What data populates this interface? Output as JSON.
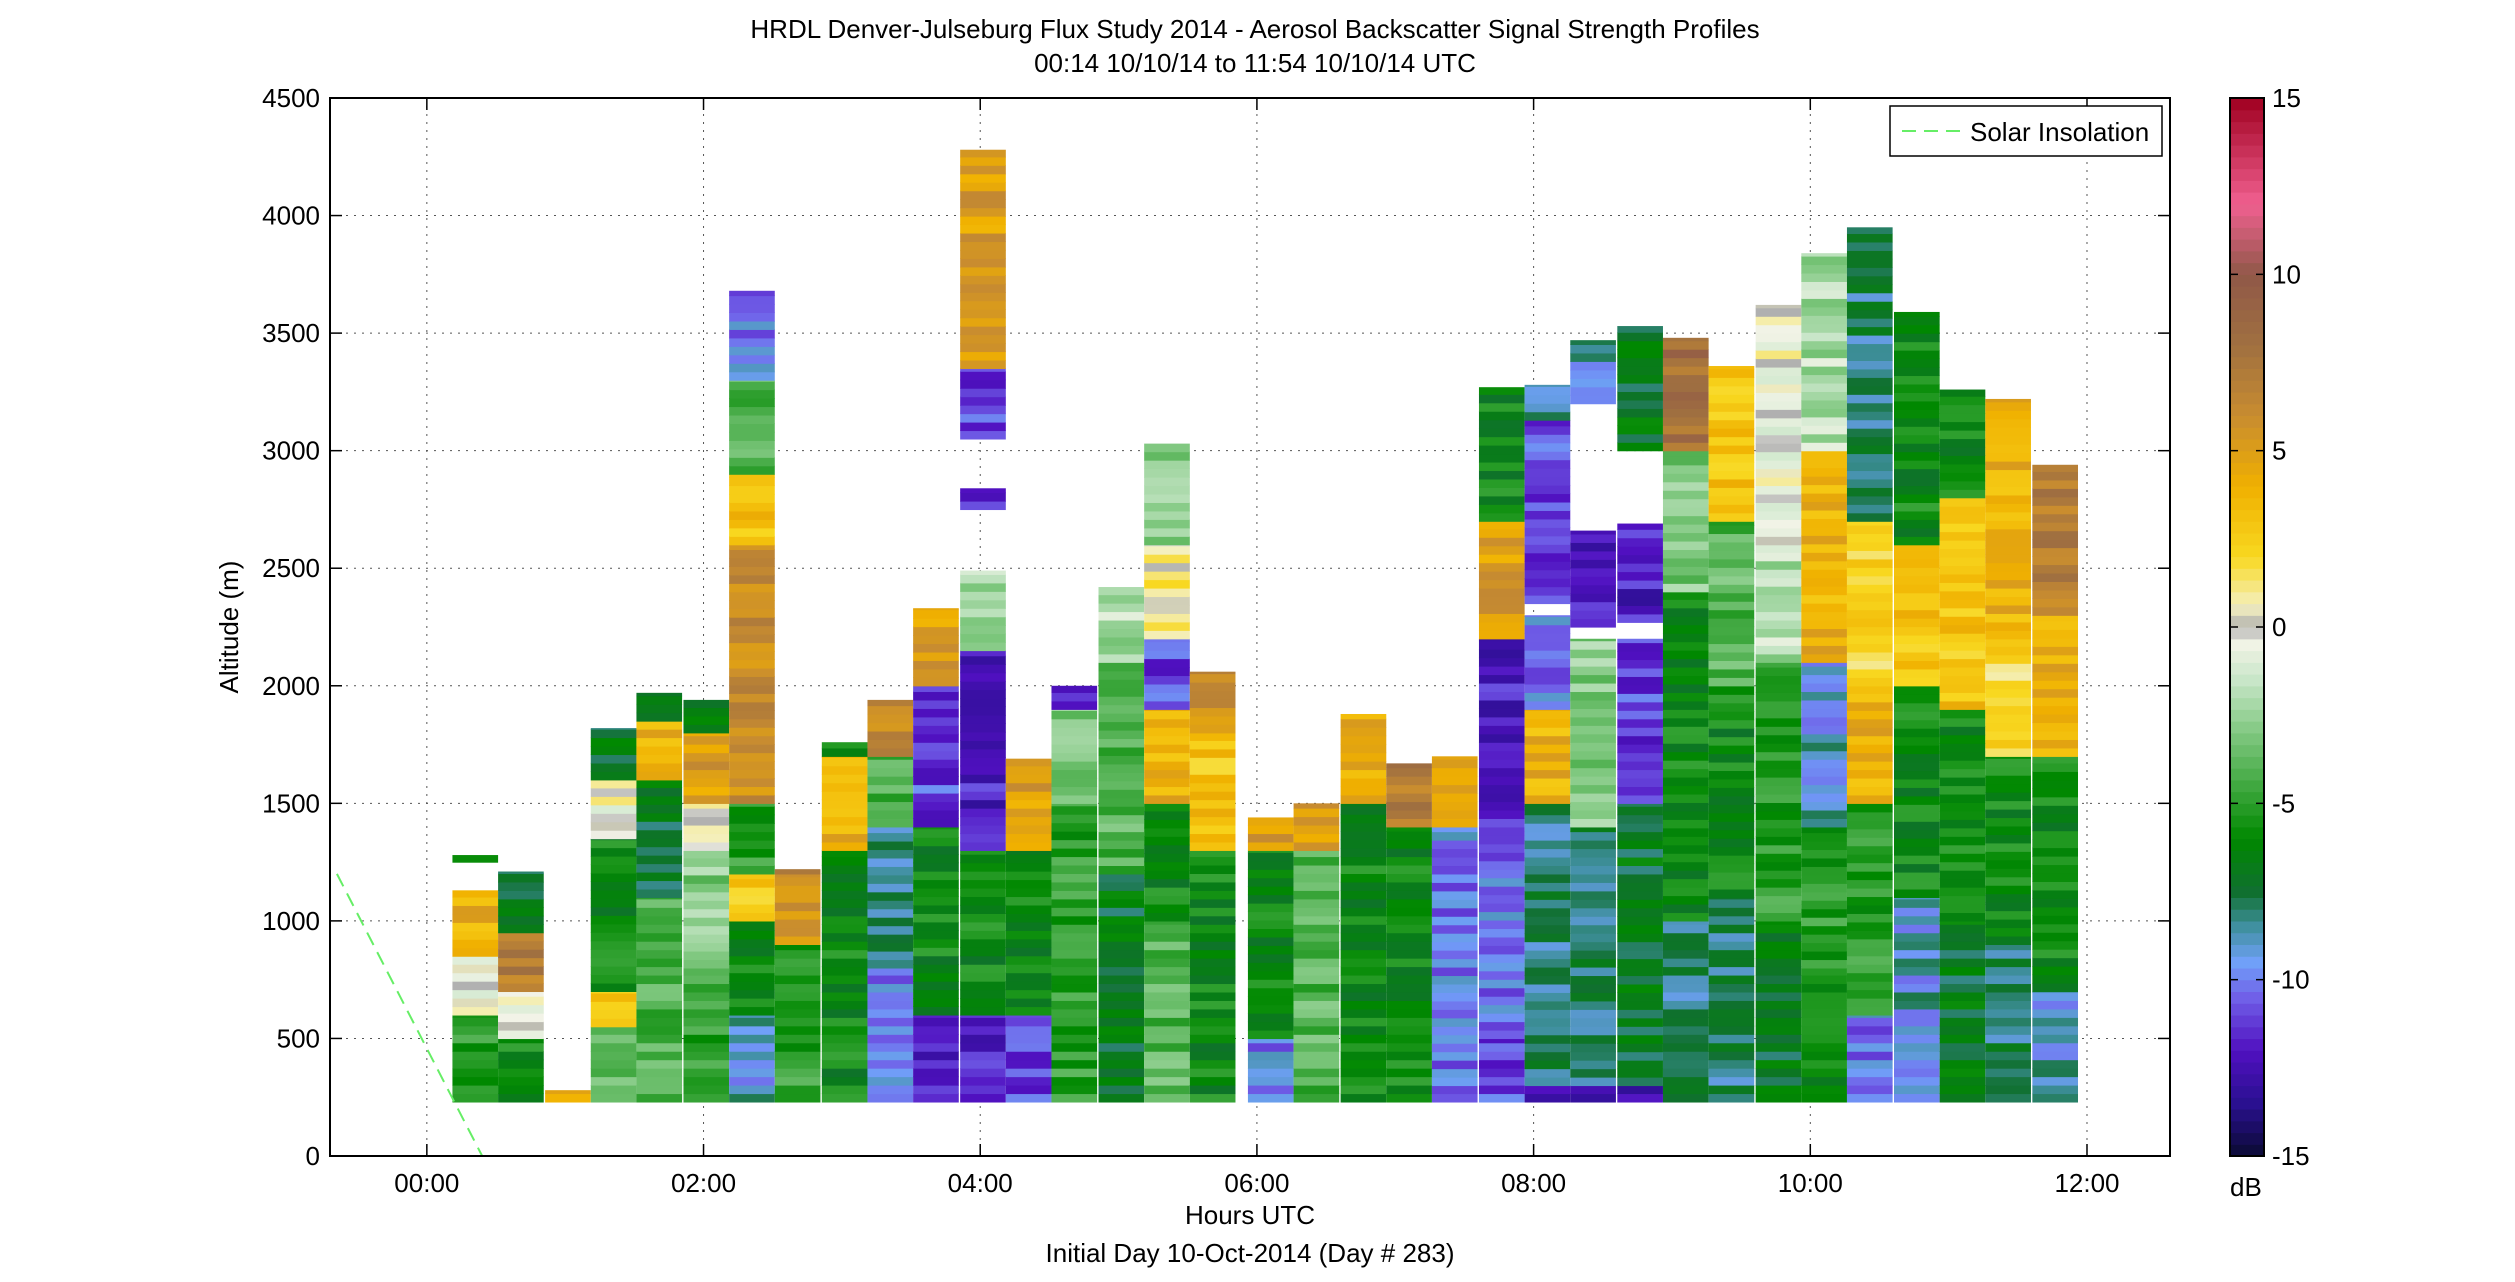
{
  "chart_data": {
    "type": "heatmap",
    "title": "HRDL Denver-Julseburg Flux Study 2014 - Aerosol Backscatter Signal Strength Profiles",
    "subtitle": "00:14 10/10/14 to 11:54 10/10/14  UTC",
    "xlabel": "Hours UTC",
    "xlabel2": "Initial Day 10-Oct-2014 (Day # 283)",
    "ylabel": "Altitude (m)",
    "xlim": [
      -0.7,
      12.6
    ],
    "ylim": [
      0,
      4500
    ],
    "x_ticks": [
      0,
      2,
      4,
      6,
      8,
      10,
      12
    ],
    "x_tick_labels": [
      "00:00",
      "02:00",
      "04:00",
      "06:00",
      "08:00",
      "10:00",
      "12:00"
    ],
    "y_ticks": [
      0,
      500,
      1000,
      1500,
      2000,
      2500,
      3000,
      3500,
      4000,
      4500
    ],
    "y_tick_labels": [
      "0",
      "500",
      "1000",
      "1500",
      "2000",
      "2500",
      "3000",
      "3500",
      "4000",
      "4500"
    ],
    "grid": true,
    "legend": {
      "position": "top-right",
      "entries": [
        "Solar Insolation"
      ]
    },
    "colorbar": {
      "label": "dB",
      "range": [
        -15,
        15
      ],
      "ticks": [
        -15,
        -10,
        -5,
        0,
        5,
        10,
        15
      ],
      "tick_labels": [
        "-15",
        "-10",
        "-5",
        "0",
        "5",
        "10",
        "15"
      ]
    },
    "solar_insolation_line": {
      "x": [
        -0.65,
        0.4
      ],
      "y": [
        1200,
        0
      ],
      "color": "#66ee66"
    },
    "profile_time_width_hours": 0.33,
    "profiles": [
      {
        "t": 0.35,
        "segments": [
          [
            230,
            600,
            -5
          ],
          [
            600,
            850,
            0
          ],
          [
            850,
            1130,
            4
          ],
          [
            1250,
            1280,
            -7
          ]
        ]
      },
      {
        "t": 0.68,
        "segments": [
          [
            230,
            500,
            -6
          ],
          [
            500,
            700,
            0
          ],
          [
            700,
            950,
            7
          ],
          [
            950,
            1210,
            -7
          ]
        ]
      },
      {
        "t": 1.02,
        "segments": [
          [
            230,
            280,
            5
          ]
        ]
      },
      {
        "t": 1.35,
        "segments": [
          [
            230,
            550,
            -4
          ],
          [
            550,
            700,
            3
          ],
          [
            700,
            1350,
            -6
          ],
          [
            1350,
            1600,
            0
          ],
          [
            1600,
            1820,
            -7
          ]
        ]
      },
      {
        "t": 1.68,
        "segments": [
          [
            230,
            1100,
            -4
          ],
          [
            1100,
            1600,
            -7
          ],
          [
            1600,
            1850,
            4
          ],
          [
            1850,
            1970,
            -6
          ]
        ]
      },
      {
        "t": 2.02,
        "segments": [
          [
            230,
            800,
            -5
          ],
          [
            800,
            1300,
            -3
          ],
          [
            1300,
            1500,
            0
          ],
          [
            1500,
            1800,
            5
          ],
          [
            1800,
            1940,
            -6
          ]
        ]
      },
      {
        "t": 2.35,
        "segments": [
          [
            230,
            600,
            -9
          ],
          [
            600,
            1000,
            -6
          ],
          [
            1000,
            1200,
            3
          ],
          [
            1200,
            1500,
            -5
          ],
          [
            1500,
            2600,
            6
          ],
          [
            2600,
            2900,
            3
          ],
          [
            2900,
            3300,
            -4
          ],
          [
            3300,
            3680,
            -10
          ]
        ]
      },
      {
        "t": 2.68,
        "segments": [
          [
            230,
            900,
            -5
          ],
          [
            900,
            1200,
            6
          ],
          [
            1200,
            1220,
            7
          ]
        ]
      },
      {
        "t": 3.02,
        "segments": [
          [
            230,
            1300,
            -6
          ],
          [
            1300,
            1700,
            4
          ],
          [
            1700,
            1760,
            -6
          ]
        ]
      },
      {
        "t": 3.35,
        "segments": [
          [
            230,
            800,
            -10
          ],
          [
            800,
            1400,
            -8
          ],
          [
            1400,
            1700,
            -4
          ],
          [
            1700,
            1940,
            6
          ]
        ]
      },
      {
        "t": 3.68,
        "segments": [
          [
            230,
            600,
            -12
          ],
          [
            600,
            1400,
            -6
          ],
          [
            1400,
            2000,
            -11
          ],
          [
            2000,
            2330,
            5
          ]
        ]
      },
      {
        "t": 4.02,
        "segments": [
          [
            230,
            600,
            -12
          ],
          [
            600,
            1300,
            -6
          ],
          [
            1300,
            2150,
            -12
          ],
          [
            2150,
            2490,
            -2
          ],
          [
            2750,
            2840,
            -12
          ],
          [
            3050,
            3350,
            -11
          ],
          [
            3350,
            4280,
            5
          ]
        ]
      },
      {
        "t": 4.35,
        "segments": [
          [
            230,
            600,
            -11
          ],
          [
            600,
            1300,
            -6
          ],
          [
            1300,
            1690,
            5
          ]
        ]
      },
      {
        "t": 4.68,
        "segments": [
          [
            230,
            1500,
            -5
          ],
          [
            1500,
            1900,
            -3
          ],
          [
            1900,
            2000,
            -12
          ]
        ]
      },
      {
        "t": 5.02,
        "segments": [
          [
            230,
            1200,
            -7
          ],
          [
            1200,
            2100,
            -4
          ],
          [
            2100,
            2420,
            -2
          ]
        ]
      },
      {
        "t": 5.35,
        "segments": [
          [
            230,
            1000,
            -4
          ],
          [
            1000,
            1500,
            -6
          ],
          [
            1500,
            1900,
            4
          ],
          [
            1900,
            2200,
            -11
          ],
          [
            2200,
            2600,
            1
          ],
          [
            2600,
            3030,
            -3
          ]
        ]
      },
      {
        "t": 5.68,
        "segments": [
          [
            230,
            1300,
            -6
          ],
          [
            1300,
            1800,
            3
          ],
          [
            1800,
            2060,
            6
          ]
        ]
      },
      {
        "t": 6.1,
        "segments": [
          [
            230,
            500,
            -10
          ],
          [
            500,
            1300,
            -6
          ],
          [
            1300,
            1440,
            5
          ]
        ]
      },
      {
        "t": 6.43,
        "segments": [
          [
            230,
            1300,
            -4
          ],
          [
            1300,
            1500,
            5
          ]
        ]
      },
      {
        "t": 6.77,
        "segments": [
          [
            230,
            1500,
            -6
          ],
          [
            1500,
            1880,
            4
          ]
        ]
      },
      {
        "t": 7.1,
        "segments": [
          [
            230,
            1400,
            -6
          ],
          [
            1400,
            1670,
            7
          ]
        ]
      },
      {
        "t": 7.43,
        "segments": [
          [
            230,
            300,
            -11
          ],
          [
            300,
            1400,
            -10
          ],
          [
            1400,
            1700,
            4
          ]
        ]
      },
      {
        "t": 7.77,
        "segments": [
          [
            230,
            500,
            -11
          ],
          [
            500,
            1400,
            -10
          ],
          [
            1400,
            2200,
            -12
          ],
          [
            2200,
            2700,
            5
          ],
          [
            2700,
            3270,
            -6
          ]
        ]
      },
      {
        "t": 8.1,
        "segments": [
          [
            230,
            300,
            -12
          ],
          [
            300,
            1500,
            -8
          ],
          [
            1500,
            1900,
            4
          ],
          [
            1900,
            2300,
            -10
          ],
          [
            2350,
            3130,
            -11
          ],
          [
            3130,
            3280,
            -9
          ]
        ]
      },
      {
        "t": 8.43,
        "segments": [
          [
            230,
            300,
            -12
          ],
          [
            300,
            1400,
            -8
          ],
          [
            1400,
            2200,
            -3
          ],
          [
            2250,
            2660,
            -12
          ],
          [
            3200,
            3470,
            -9
          ]
        ]
      },
      {
        "t": 8.77,
        "segments": [
          [
            230,
            300,
            -12
          ],
          [
            300,
            1500,
            -7
          ],
          [
            1500,
            2200,
            -11
          ],
          [
            2270,
            2690,
            -12
          ],
          [
            3000,
            3530,
            -7
          ]
        ]
      },
      {
        "t": 9.1,
        "segments": [
          [
            230,
            1000,
            -8
          ],
          [
            1000,
            2400,
            -6
          ],
          [
            2400,
            3000,
            -3
          ],
          [
            3000,
            3480,
            8
          ]
        ]
      },
      {
        "t": 9.43,
        "segments": [
          [
            230,
            1100,
            -8
          ],
          [
            1100,
            2000,
            -6
          ],
          [
            2000,
            2700,
            -4
          ],
          [
            2700,
            3360,
            3
          ]
        ]
      },
      {
        "t": 9.77,
        "segments": [
          [
            230,
            1000,
            -7
          ],
          [
            1000,
            2100,
            -5
          ],
          [
            2100,
            2600,
            -2
          ],
          [
            2600,
            3620,
            0
          ]
        ]
      },
      {
        "t": 10.1,
        "segments": [
          [
            230,
            800,
            -6
          ],
          [
            800,
            1400,
            -5
          ],
          [
            1400,
            2100,
            -9
          ],
          [
            2100,
            3000,
            4
          ],
          [
            3000,
            3840,
            -2
          ]
        ]
      },
      {
        "t": 10.43,
        "segments": [
          [
            230,
            600,
            -10
          ],
          [
            600,
            1500,
            -5
          ],
          [
            1500,
            2000,
            4
          ],
          [
            2000,
            2700,
            2
          ],
          [
            2700,
            3950,
            -8
          ]
        ]
      },
      {
        "t": 10.77,
        "segments": [
          [
            230,
            1100,
            -9
          ],
          [
            1100,
            2000,
            -6
          ],
          [
            2000,
            2600,
            3
          ],
          [
            2600,
            3590,
            -6
          ]
        ]
      },
      {
        "t": 11.1,
        "segments": [
          [
            230,
            1000,
            -7
          ],
          [
            1000,
            1900,
            -6
          ],
          [
            1900,
            2800,
            3
          ],
          [
            2800,
            3260,
            -6
          ]
        ]
      },
      {
        "t": 11.43,
        "segments": [
          [
            230,
            900,
            -8
          ],
          [
            900,
            1700,
            -6
          ],
          [
            1700,
            2200,
            2
          ],
          [
            2200,
            3220,
            4
          ]
        ]
      },
      {
        "t": 11.77,
        "segments": [
          [
            230,
            700,
            -9
          ],
          [
            700,
            1700,
            -6
          ],
          [
            1700,
            2300,
            4
          ],
          [
            2300,
            2940,
            7
          ]
        ]
      }
    ]
  }
}
